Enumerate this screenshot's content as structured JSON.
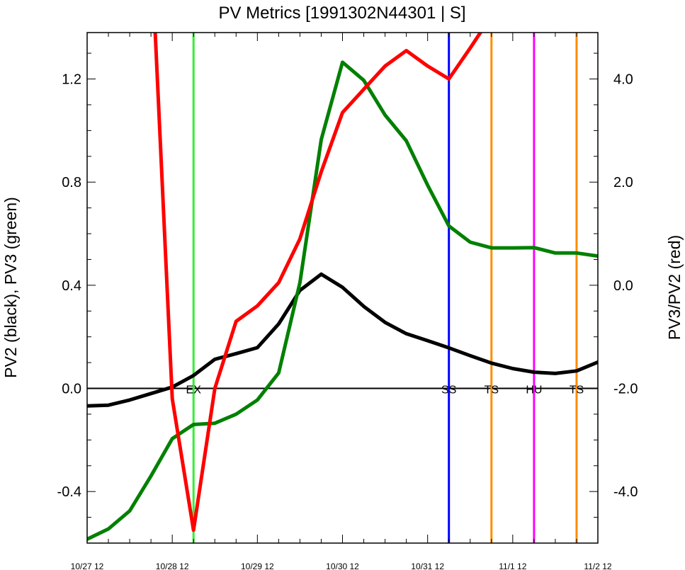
{
  "chart_data": {
    "type": "line",
    "title": "PV Metrics [1991302N44301 | S]",
    "ylabel_left": "PV2 (black), PV3 (green)",
    "ylabel_right": "PV3/PV2 (red)",
    "x_ticks": [
      "10/27 12",
      "10/28 12",
      "10/29 12",
      "10/30 12",
      "10/31 12",
      "11/1 12",
      "11/2 12"
    ],
    "x_unit": "days since 10/27 12",
    "xlim": [
      0,
      6
    ],
    "ylim_left": [
      -0.6,
      1.38
    ],
    "ylim_right": [
      -5.0,
      4.9
    ],
    "yticks_left": [
      "-0.4",
      "0.0",
      "0.4",
      "0.8",
      "1.2"
    ],
    "yticks_right": [
      "-4.0",
      "-2.0",
      "0.0",
      "2.0",
      "4.0"
    ],
    "series": [
      {
        "name": "PV2",
        "color": "#000000",
        "axis": "left",
        "x": [
          0,
          0.25,
          0.5,
          0.75,
          1.0,
          1.25,
          1.5,
          1.75,
          2.0,
          2.25,
          2.5,
          2.75,
          3.0,
          3.25,
          3.5,
          3.75,
          4.0,
          4.25,
          4.5,
          4.75,
          5.0,
          5.25,
          5.5,
          5.75,
          6.0
        ],
        "y": [
          -0.068,
          -0.065,
          -0.045,
          -0.02,
          0.005,
          0.05,
          0.113,
          0.135,
          0.158,
          0.25,
          0.38,
          0.443,
          0.392,
          0.318,
          0.256,
          0.212,
          0.185,
          0.157,
          0.127,
          0.098,
          0.077,
          0.063,
          0.058,
          0.068,
          0.102
        ]
      },
      {
        "name": "PV3",
        "color": "#008000",
        "axis": "left",
        "x": [
          0,
          0.25,
          0.5,
          0.75,
          1.0,
          1.25,
          1.5,
          1.75,
          2.0,
          2.25,
          2.5,
          2.75,
          3.0,
          3.25,
          3.5,
          3.75,
          4.0,
          4.25,
          4.5,
          4.75,
          5.0,
          5.25,
          5.5,
          5.75,
          6.0
        ],
        "y": [
          -0.585,
          -0.545,
          -0.475,
          -0.34,
          -0.195,
          -0.14,
          -0.135,
          -0.1,
          -0.045,
          0.06,
          0.41,
          0.965,
          1.265,
          1.195,
          1.06,
          0.96,
          0.788,
          0.63,
          0.567,
          0.545,
          0.545,
          0.546,
          0.525,
          0.525,
          0.513
        ]
      },
      {
        "name": "PV3/PV2",
        "color": "#ff0000",
        "axis": "right",
        "x": [
          0.8,
          1.0,
          1.25,
          1.5,
          1.75,
          2.0,
          2.25,
          2.5,
          2.75,
          3.0,
          3.25,
          3.5,
          3.75,
          4.0,
          4.25,
          4.5,
          4.62
        ],
        "y": [
          4.9,
          -2.2,
          -4.75,
          -2.0,
          -0.7,
          -0.4,
          0.05,
          0.9,
          2.2,
          3.35,
          3.8,
          4.25,
          4.55,
          4.25,
          4.0,
          4.6,
          4.9
        ]
      }
    ],
    "zero_line_left": 0.0,
    "markers": [
      {
        "x": 1.25,
        "color": "#33ee33",
        "label": "EX"
      },
      {
        "x": 4.25,
        "color": "#0000ff",
        "label": "SS"
      },
      {
        "x": 4.75,
        "color": "#ff8c00",
        "label": "TS"
      },
      {
        "x": 5.25,
        "color": "#ff00ff",
        "label": "HU"
      },
      {
        "x": 5.75,
        "color": "#ff8c00",
        "label": "TS"
      }
    ],
    "grid": false,
    "legend": "none"
  }
}
